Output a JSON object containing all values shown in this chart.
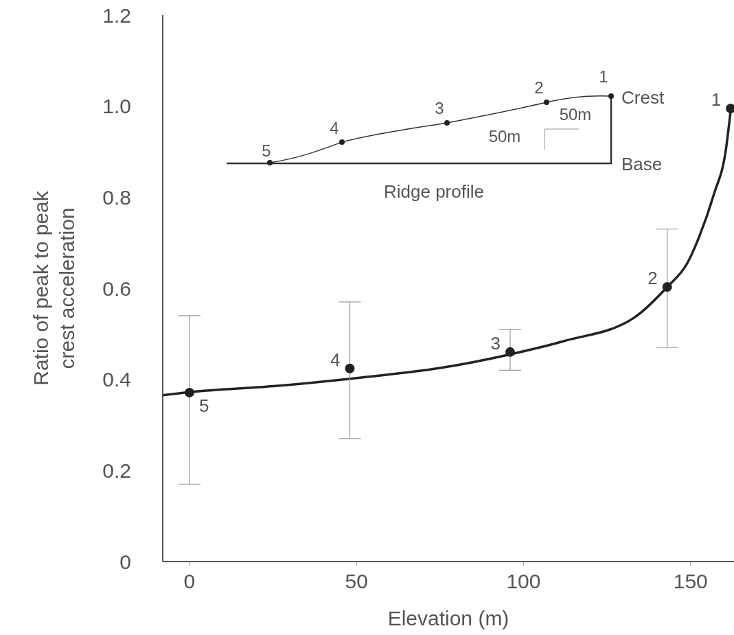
{
  "chart_data": {
    "type": "scatter",
    "xlabel": "Elevation (m)",
    "ylabel": "Ratio of peak to peak\ncrest acceleration",
    "xlim": [
      -8,
      163
    ],
    "xticks": [
      0,
      50,
      100,
      150
    ],
    "ylim": [
      0,
      1.2
    ],
    "yticks": [
      0,
      0.2,
      0.4,
      0.6,
      0.8,
      {
        "value": 1,
        "label": "1.0"
      },
      1.2
    ],
    "series": [
      {
        "color": "#222222",
        "marker": "circle",
        "x": [
          0,
          48,
          96,
          143,
          162
        ],
        "values": [
          0.371,
          0.424,
          0.46,
          0.603,
          0.995
        ],
        "errors": [
          [
            0.17,
            0.54
          ],
          [
            0.27,
            0.57
          ],
          [
            0.42,
            0.51
          ],
          [
            0.47,
            0.73
          ],
          null
        ]
      },
      {
        "type": "line",
        "color": "#222222",
        "x": [
          -8,
          0,
          25,
          50,
          75,
          96,
          112,
          133,
          143,
          149,
          152.4,
          157,
          160.6,
          162
        ],
        "values": [
          0.365,
          0.372,
          0.385,
          0.403,
          0.425,
          0.455,
          0.484,
          0.535,
          0.603,
          0.655,
          0.71,
          0.807,
          0.906,
          0.99
        ]
      }
    ],
    "annotations": [
      "Ridge profile",
      "Crest",
      "Base",
      "50m",
      "50m",
      "1",
      "2",
      "3",
      "4",
      "5",
      {
        "text": "5",
        "x": 0,
        "y": 0.371
      },
      {
        "text": "4",
        "x": 48,
        "y": 0.424
      },
      {
        "text": "3",
        "x": 96,
        "y": 0.46
      },
      {
        "text": "2",
        "x": 143,
        "y": 0.603
      },
      {
        "text": "1",
        "x": 162,
        "y": 0.995
      }
    ]
  }
}
